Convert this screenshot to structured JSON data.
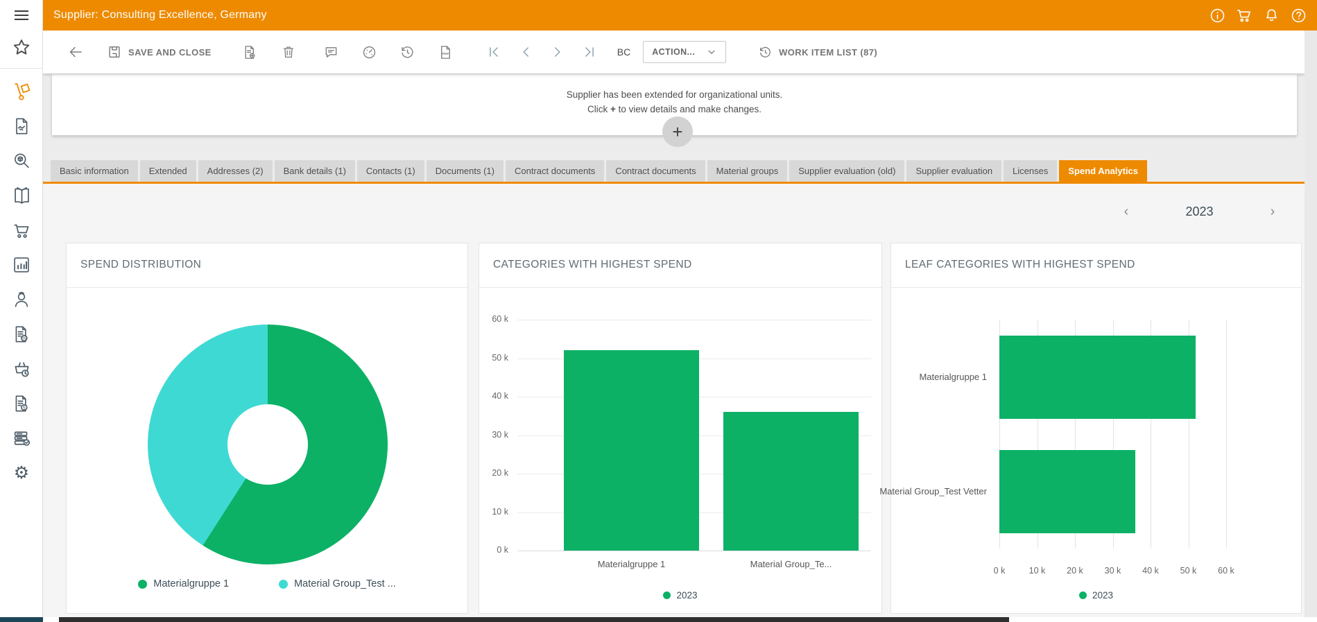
{
  "header": {
    "title": "Supplier: Consulting Excellence, Germany",
    "accent_color": "#ee8a00",
    "icons": [
      "info",
      "shopping-cart",
      "notifications-bell",
      "help"
    ]
  },
  "sidebar": {
    "active_item": "supplier-hand-truck",
    "icons": [
      "hamburger-menu",
      "favorites-star",
      "supplier-hand-truck",
      "contract-document",
      "item-search",
      "catalog-book",
      "shopping-cart",
      "analytics-bar-chart",
      "user-profile",
      "document-percent",
      "basket-clock",
      "document-paragraph",
      "server-checklist",
      "settings-gear"
    ]
  },
  "toolbar": {
    "save_and_close": "SAVE AND CLOSE",
    "bc_label": "BC",
    "action_label": "ACTION...",
    "work_item_list": "WORK ITEM LIST (87)"
  },
  "notice": {
    "line1": "Supplier has been extended for organizational units.",
    "line2_prefix": "Click ",
    "line2_plus": "+",
    "line2_suffix": " to view details and make changes.",
    "plus_label": "+"
  },
  "tabs": [
    {
      "label": "Basic information",
      "active": false
    },
    {
      "label": "Extended",
      "active": false
    },
    {
      "label": "Addresses (2)",
      "active": false
    },
    {
      "label": "Bank details (1)",
      "active": false
    },
    {
      "label": "Contacts (1)",
      "active": false
    },
    {
      "label": "Documents (1)",
      "active": false
    },
    {
      "label": "Contract documents",
      "active": false
    },
    {
      "label": "Contract documents",
      "active": false
    },
    {
      "label": "Material groups",
      "active": false
    },
    {
      "label": "Supplier evaluation (old)",
      "active": false
    },
    {
      "label": "Supplier evaluation",
      "active": false
    },
    {
      "label": "Licenses",
      "active": false
    },
    {
      "label": "Spend Analytics",
      "active": true
    }
  ],
  "year_nav": {
    "prev": "‹",
    "year": "2023",
    "next": "›"
  },
  "colors": {
    "accent_orange": "#ee8a00",
    "green": "#0cb166",
    "cyan": "#3fd9d3"
  },
  "chart_data": [
    {
      "type": "pie",
      "donut": true,
      "title": "SPEND DISTRIBUTION",
      "labels": [
        "Materialgruppe 1",
        "Material Group_Test ..."
      ],
      "values": [
        52000,
        36000
      ],
      "colors": [
        "#0cb166",
        "#3fd9d3"
      ],
      "legend_position": "bottom"
    },
    {
      "type": "bar",
      "title": "CATEGORIES WITH HIGHEST SPEND",
      "categories": [
        "Materialgruppe 1",
        "Material Group_Te..."
      ],
      "series": [
        {
          "name": "2023",
          "color": "#0cb166",
          "values": [
            52000,
            36000
          ]
        }
      ],
      "ylim": [
        0,
        60000
      ],
      "yticks": [
        "0 k",
        "10 k",
        "20 k",
        "30 k",
        "40 k",
        "50 k",
        "60 k"
      ],
      "grid": true,
      "legend_position": "bottom"
    },
    {
      "type": "bar-horizontal",
      "title": "LEAF CATEGORIES WITH HIGHEST SPEND",
      "categories": [
        "Materialgruppe 1",
        "Material Group_Test Vetter"
      ],
      "series": [
        {
          "name": "2023",
          "color": "#0cb166",
          "values": [
            52000,
            36000
          ]
        }
      ],
      "xlim": [
        0,
        60000
      ],
      "xticks": [
        "0 k",
        "10 k",
        "20 k",
        "30 k",
        "40 k",
        "50 k",
        "60 k"
      ],
      "grid": true,
      "legend_position": "bottom"
    }
  ]
}
